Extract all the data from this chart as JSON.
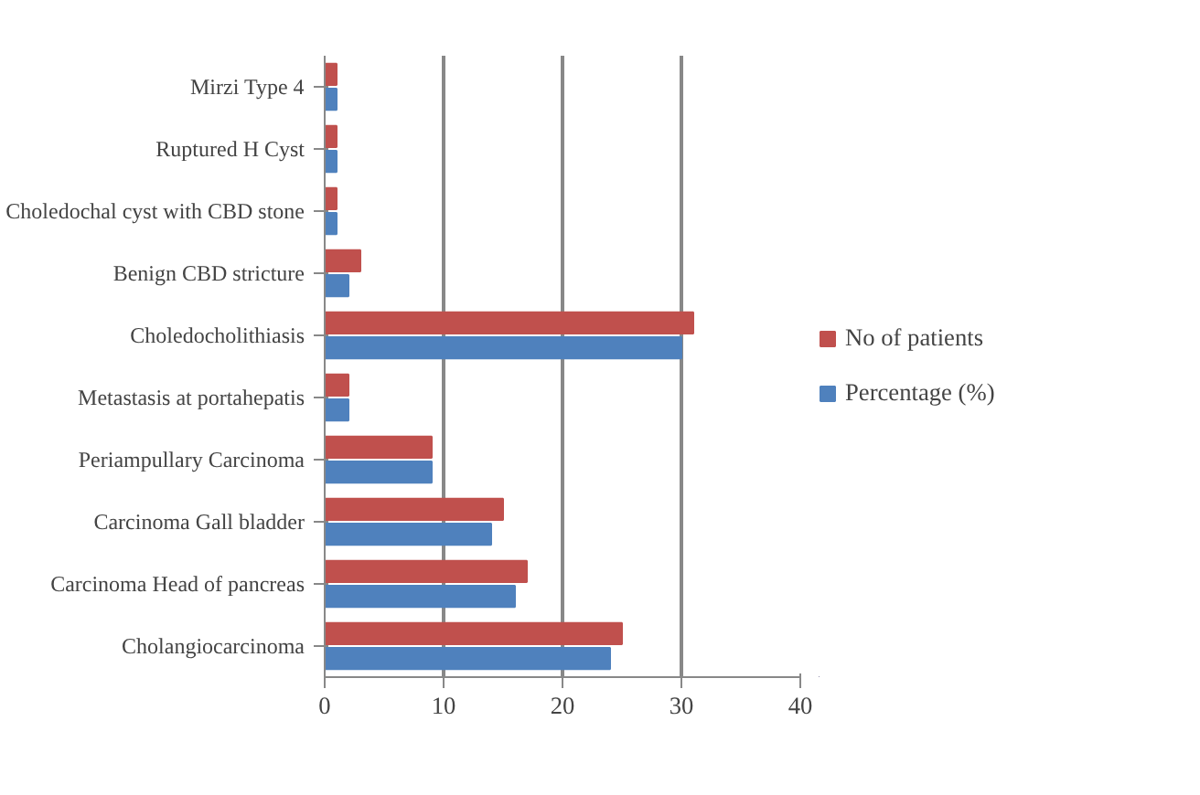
{
  "chart_data": {
    "type": "bar",
    "orientation": "horizontal",
    "categories": [
      "Mirzi Type 4",
      "Ruptured H Cyst",
      "Choledochal cyst with CBD stone",
      "Benign CBD stricture",
      "Choledocholithiasis",
      "Metastasis at portahepatis",
      "Periampullary Carcinoma",
      "Carcinoma Gall bladder",
      "Carcinoma Head of pancreas",
      "Cholangiocarcinoma"
    ],
    "series": [
      {
        "name": "No of patients",
        "color": "#c0504d",
        "values": [
          1,
          1,
          1,
          3,
          31,
          2,
          9,
          15,
          17,
          25
        ]
      },
      {
        "name": "Percentage (%)",
        "color": "#4f81bd",
        "values": [
          1,
          1,
          1,
          2,
          30,
          2,
          9,
          14,
          16,
          24
        ]
      }
    ],
    "xlim": [
      0,
      40
    ],
    "xticks": [
      0,
      10,
      20,
      30,
      40
    ],
    "grid": "x",
    "legend": "right"
  }
}
